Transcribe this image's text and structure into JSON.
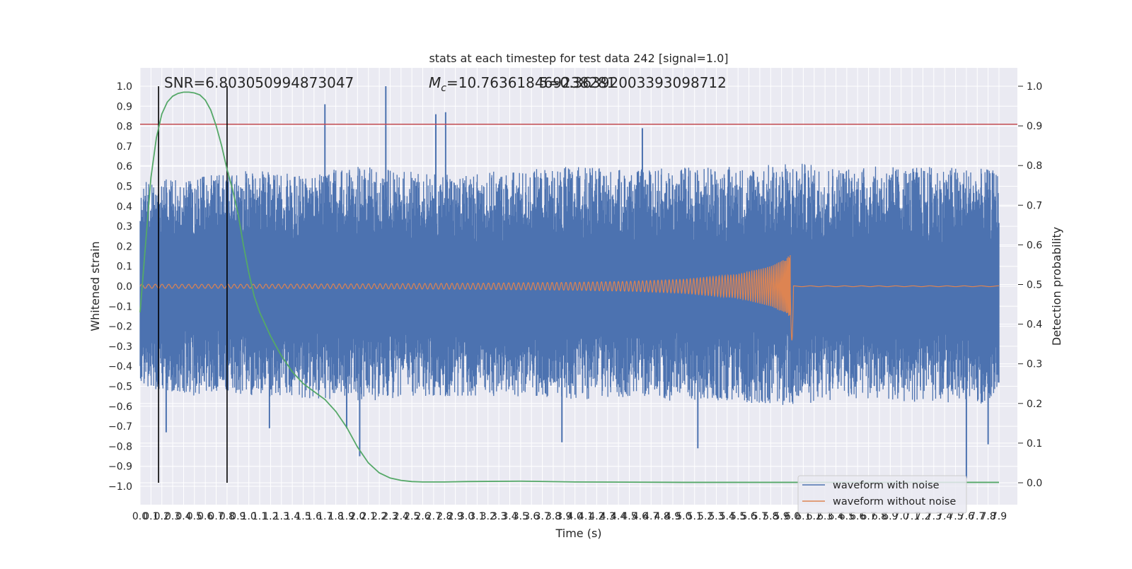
{
  "chart_data": {
    "type": "line",
    "title": "stats at each timestep for test data 242 [signal=1.0]",
    "xlabel": "Time (s)",
    "ylabel_left": "Whitened strain",
    "ylabel_right": "Detection probability",
    "xlim": [
      0.0,
      7.9
    ],
    "ylim_left": [
      -1.0,
      1.0
    ],
    "ylim_right": [
      0.0,
      1.0
    ],
    "x_ticks": [
      0.0,
      0.1,
      0.2,
      0.3,
      0.4,
      0.5,
      0.6,
      0.7,
      0.8,
      0.9,
      1.0,
      1.1,
      1.2,
      1.3,
      1.4,
      1.5,
      1.6,
      1.7,
      1.8,
      1.9,
      2.0,
      2.1,
      2.2,
      2.3,
      2.4,
      2.5,
      2.6,
      2.7,
      2.8,
      2.9,
      3.0,
      3.1,
      3.2,
      3.3,
      3.4,
      3.5,
      3.6,
      3.7,
      3.8,
      3.9,
      4.0,
      4.1,
      4.2,
      4.3,
      4.4,
      4.5,
      4.6,
      4.7,
      4.8,
      4.9,
      5.0,
      5.1,
      5.2,
      5.3,
      5.4,
      5.5,
      5.6,
      5.7,
      5.8,
      5.9,
      6.0,
      6.1,
      6.2,
      6.3,
      6.4,
      6.5,
      6.6,
      6.7,
      6.8,
      6.9,
      7.0,
      7.1,
      7.2,
      7.3,
      7.4,
      7.5,
      7.6,
      7.7,
      7.8,
      7.9
    ],
    "x_tick_labels": [
      "0.0",
      "0.1",
      "0.2",
      "0.3",
      "0.4",
      "0.5",
      "0.6",
      "0.7",
      "0.8",
      "0.9",
      "1.0",
      "1.1",
      "1.2",
      "1.3",
      "1.4",
      "1.5",
      "1.6",
      "1.7",
      "1.8",
      "1.9",
      "2.0",
      "2.1",
      "2.2",
      "2.3",
      "2.4",
      "2.5",
      "2.6",
      "2.7",
      "2.8",
      "2.9",
      "3.0",
      "3.1",
      "3.2",
      "3.3",
      "3.4",
      "3.5",
      "3.6",
      "3.7",
      "3.8",
      "3.9",
      "4.0",
      "4.1",
      "4.2",
      "4.3",
      "4.4",
      "4.5",
      "4.6",
      "4.7",
      "4.8",
      "4.9",
      "5.0",
      "5.1",
      "5.2",
      "5.3",
      "5.4",
      "5.5",
      "5.6",
      "5.7",
      "5.8",
      "5.9",
      "6.0",
      "6.1",
      "6.2",
      "6.3",
      "6.4",
      "6.5",
      "6.6",
      "6.7",
      "6.8",
      "6.9",
      "7.0",
      "7.1",
      "7.2",
      "7.3",
      "7.4",
      "7.5",
      "7.6",
      "7.7",
      "7.8",
      "7.9"
    ],
    "y_ticks_left": [
      1.0,
      0.9,
      0.8,
      0.7,
      0.6,
      0.5,
      0.4,
      0.3,
      0.2,
      0.1,
      0.0,
      -0.1,
      -0.2,
      -0.3,
      -0.4,
      -0.5,
      -0.6,
      -0.7,
      -0.8,
      -0.9,
      -1.0
    ],
    "y_tick_labels_left": [
      "1.0",
      "0.9",
      "0.8",
      "0.7",
      "0.6",
      "0.5",
      "0.4",
      "0.3",
      "0.2",
      "0.1",
      "0.0",
      "−0.1",
      "−0.2",
      "−0.3",
      "−0.4",
      "−0.5",
      "−0.6",
      "−0.7",
      "−0.8",
      "−0.9",
      "−1.0"
    ],
    "y_ticks_right": [
      1.0,
      0.9,
      0.8,
      0.7,
      0.6,
      0.5,
      0.4,
      0.3,
      0.2,
      0.1,
      0.0
    ],
    "y_tick_labels_right": [
      "1.0",
      "0.9",
      "0.8",
      "0.7",
      "0.6",
      "0.5",
      "0.4",
      "0.3",
      "0.2",
      "0.1",
      "0.0"
    ],
    "grid": true,
    "legend_position": "lower-right",
    "legend": [
      {
        "name": "waveform with noise",
        "color": "#4c72b0"
      },
      {
        "name": "waveform without noise",
        "color": "#dd8452"
      }
    ],
    "annotations": {
      "snr_text": "SNR=6.803050994873047",
      "mc_prefix": "M",
      "mc_subscript": "c",
      "mc_value": "=10.763618469238281",
      "overlap_text": "5=0.36392003393098712"
    },
    "noisy_waveform": {
      "name": "waveform with noise",
      "color": "#4c72b0",
      "envelope_x": [
        0.0,
        0.5,
        1.0,
        1.5,
        2.0,
        2.5,
        3.0,
        3.5,
        4.0,
        4.5,
        5.0,
        5.5,
        6.0,
        6.5,
        7.0,
        7.5,
        7.9
      ],
      "envelope_upper": [
        0.52,
        0.55,
        0.58,
        0.56,
        0.6,
        0.58,
        0.57,
        0.58,
        0.6,
        0.58,
        0.6,
        0.6,
        0.62,
        0.6,
        0.6,
        0.6,
        0.58
      ],
      "envelope_lower": [
        -0.5,
        -0.55,
        -0.55,
        -0.56,
        -0.58,
        -0.55,
        -0.55,
        -0.55,
        -0.57,
        -0.56,
        -0.58,
        -0.58,
        -0.6,
        -0.56,
        -0.58,
        -0.58,
        -0.6
      ],
      "spikes": [
        {
          "x": 1.7,
          "y": 0.91
        },
        {
          "x": 2.26,
          "y": 1.0
        },
        {
          "x": 2.72,
          "y": 0.86
        },
        {
          "x": 2.81,
          "y": 0.87
        },
        {
          "x": 4.62,
          "y": 0.79
        },
        {
          "x": 2.02,
          "y": -0.85
        },
        {
          "x": 0.24,
          "y": -0.73
        },
        {
          "x": 5.13,
          "y": -0.81
        },
        {
          "x": 3.88,
          "y": -0.78
        },
        {
          "x": 7.6,
          "y": -0.96
        },
        {
          "x": 7.8,
          "y": -0.79
        },
        {
          "x": 1.9,
          "y": -0.71
        },
        {
          "x": 1.19,
          "y": -0.71
        }
      ]
    },
    "clean_waveform": {
      "name": "waveform without noise",
      "color": "#dd8452",
      "amplitude_x": [
        0.0,
        1.0,
        2.0,
        3.0,
        4.0,
        4.5,
        5.0,
        5.5,
        5.8,
        5.95,
        6.0,
        6.05,
        6.1,
        7.9
      ],
      "amplitude": [
        0.01,
        0.01,
        0.012,
        0.015,
        0.02,
        0.025,
        0.035,
        0.06,
        0.1,
        0.14,
        0.18,
        0.22,
        0.004,
        0.002
      ],
      "peak_time": 5.98
    },
    "detection_probability": {
      "name": "detection probability",
      "color": "#55a868",
      "axis": "right",
      "x": [
        0.0,
        0.05,
        0.1,
        0.15,
        0.2,
        0.25,
        0.3,
        0.35,
        0.4,
        0.45,
        0.5,
        0.55,
        0.6,
        0.65,
        0.7,
        0.75,
        0.8,
        0.85,
        0.9,
        0.95,
        1.0,
        1.05,
        1.1,
        1.15,
        1.2,
        1.3,
        1.4,
        1.5,
        1.6,
        1.7,
        1.8,
        1.9,
        2.0,
        2.1,
        2.2,
        2.3,
        2.4,
        2.5,
        2.6,
        2.8,
        3.0,
        3.5,
        4.0,
        5.0,
        6.0,
        7.0,
        7.9
      ],
      "y": [
        0.43,
        0.6,
        0.77,
        0.87,
        0.93,
        0.96,
        0.975,
        0.982,
        0.985,
        0.985,
        0.983,
        0.978,
        0.965,
        0.94,
        0.9,
        0.85,
        0.79,
        0.74,
        0.68,
        0.6,
        0.53,
        0.47,
        0.43,
        0.4,
        0.37,
        0.32,
        0.28,
        0.25,
        0.23,
        0.21,
        0.18,
        0.14,
        0.09,
        0.05,
        0.025,
        0.012,
        0.006,
        0.003,
        0.002,
        0.002,
        0.003,
        0.004,
        0.002,
        0.001,
        0.001,
        0.001,
        0.001
      ]
    },
    "threshold_line": {
      "y_left": 0.81,
      "color": "#c44e52"
    },
    "vertical_markers": [
      0.17,
      0.8
    ]
  }
}
